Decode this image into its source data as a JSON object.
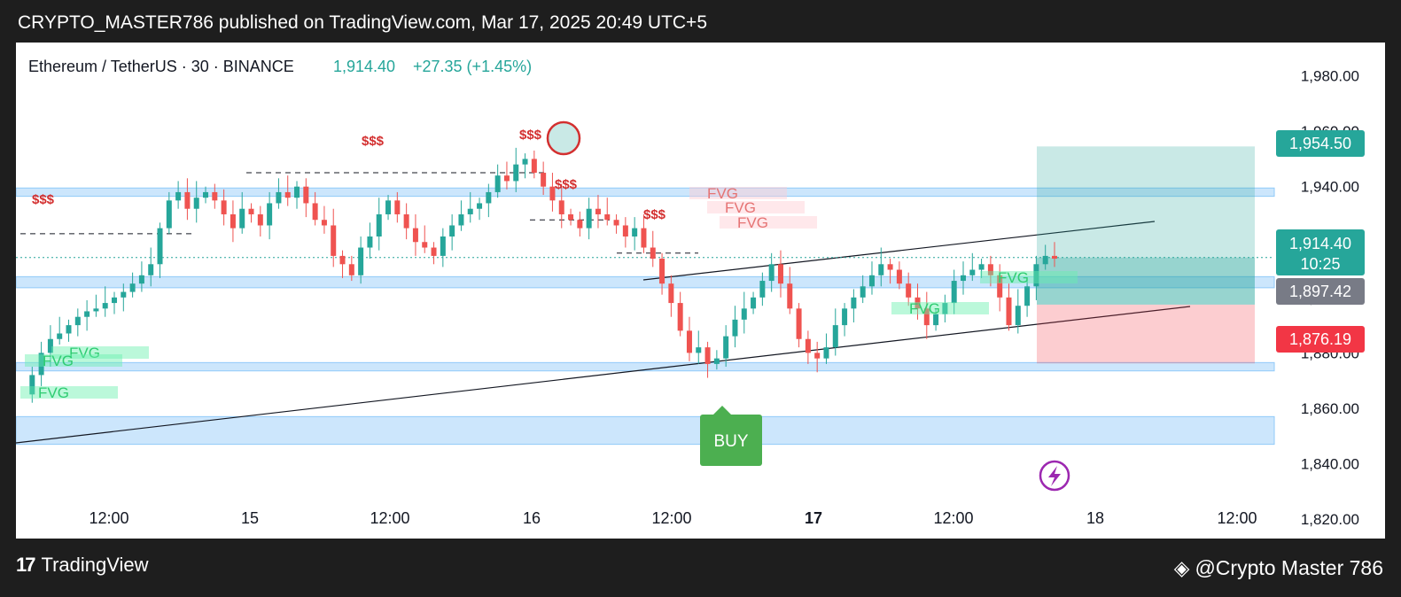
{
  "header": {
    "text": "CRYPTO_MASTER786 published on TradingView.com, Mar 17, 2025 20:49 UTC+5"
  },
  "footer": {
    "brand": "TradingView",
    "author": "@Crypto Master 786"
  },
  "symbol": {
    "name": "Ethereum / TetherUS · 30 · BINANCE",
    "price": "1,914.40",
    "change": "+27.35 (+1.45%)"
  },
  "price_tags": {
    "target": "1,954.50",
    "current": "1,914.40",
    "countdown": "10:25",
    "entry": "1,897.42",
    "stop": "1,876.19"
  },
  "annotations": {
    "buy": "BUY",
    "fvg": "FVG",
    "liquidity": "$$$"
  },
  "colors": {
    "up": "#26a69a",
    "down": "#ef5350",
    "zone": "#bbdefb",
    "target": "#26a69a",
    "stop": "#f23645",
    "entry_tag": "#787b86",
    "buy": "#4caf50"
  },
  "chart_data": {
    "type": "candlestick",
    "title": "Ethereum / TetherUS · 30 · BINANCE",
    "yticks": [
      1820,
      1840,
      1860,
      1880,
      1900,
      1920,
      1940,
      1960,
      1980
    ],
    "ytick_labels": [
      "1,820.00",
      "1,840.00",
      "1,860.00",
      "1,880.00",
      "1,900.00",
      "1,920.00",
      "1,940.00",
      "1,960.00",
      "1,980.00"
    ],
    "xtick_labels": [
      "12:00",
      "15",
      "12:00",
      "16",
      "12:00",
      "17",
      "12:00",
      "18",
      "12:00"
    ],
    "ylim": [
      1813,
      1992
    ],
    "last_price": 1914.4,
    "long_position": {
      "entry": 1897.42,
      "target": 1954.5,
      "stop": 1876.19
    },
    "support_resistance_zones": [
      [
        1936.5,
        1939.5
      ],
      [
        1903.5,
        1907.5
      ],
      [
        1873.5,
        1876.5
      ],
      [
        1847,
        1857
      ]
    ],
    "fvg_zones": [
      {
        "label": "FVG",
        "type": "bullish",
        "price": 1867
      },
      {
        "label": "FVG",
        "type": "bullish",
        "price": 1868
      },
      {
        "label": "FVG",
        "type": "bullish",
        "price": 1860
      },
      {
        "label": "FVG",
        "type": "bearish",
        "price": 1928
      },
      {
        "label": "FVG",
        "type": "bearish",
        "price": 1924
      },
      {
        "label": "FVG",
        "type": "bearish",
        "price": 1918
      },
      {
        "label": "FVG",
        "type": "bullish",
        "price": 1884
      },
      {
        "label": "FVG",
        "type": "bullish",
        "price": 1897
      }
    ],
    "price_path": [
      1865,
      1872,
      1880,
      1885,
      1887,
      1890,
      1893,
      1895,
      1896,
      1898,
      1900,
      1902,
      1905,
      1908,
      1912,
      1925,
      1935,
      1938,
      1932,
      1936,
      1938,
      1935,
      1930,
      1925,
      1932,
      1930,
      1926,
      1934,
      1938,
      1936,
      1940,
      1934,
      1928,
      1926,
      1915,
      1912,
      1908,
      1918,
      1922,
      1930,
      1935,
      1930,
      1925,
      1920,
      1918,
      1915,
      1922,
      1926,
      1930,
      1932,
      1934,
      1938,
      1944,
      1942,
      1948,
      1950,
      1945,
      1940,
      1935,
      1930,
      1928,
      1925,
      1932,
      1930,
      1928,
      1926,
      1922,
      1925,
      1918,
      1914,
      1905,
      1898,
      1888,
      1880,
      1882,
      1876,
      1878,
      1886,
      1892,
      1896,
      1900,
      1906,
      1912,
      1905,
      1896,
      1885,
      1880,
      1878,
      1882,
      1890,
      1896,
      1900,
      1904,
      1908,
      1912,
      1910,
      1905,
      1900,
      1896,
      1890,
      1894,
      1898,
      1906,
      1908,
      1910,
      1912,
      1908,
      1900,
      1890,
      1897,
      1904,
      1912,
      1915,
      1914
    ]
  }
}
